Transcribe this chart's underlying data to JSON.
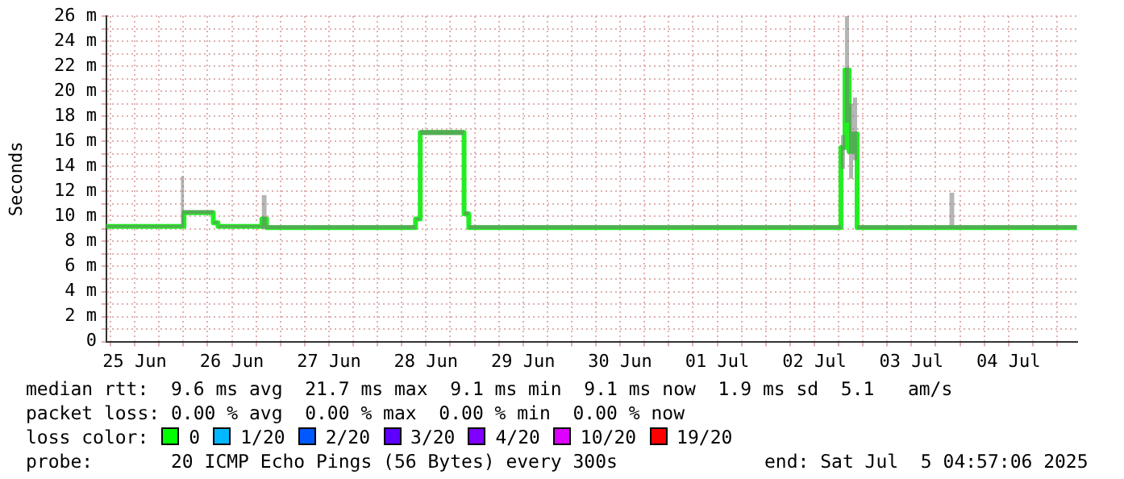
{
  "chart_data": {
    "type": "step",
    "ylabel": "Seconds",
    "series": [
      {
        "color": "#22ee22",
        "x": [
          "2025-06-25T05:00",
          "2025-06-25T23:25",
          "2025-06-26T00:10",
          "2025-06-26T07:25",
          "2025-06-26T08:35",
          "2025-06-26T19:25",
          "2025-06-26T20:35",
          "2025-06-28T09:25",
          "2025-06-28T10:35",
          "2025-06-28T21:25",
          "2025-06-28T22:35",
          "2025-07-02T18:35",
          "2025-07-02T19:35",
          "2025-07-02T20:35",
          "2025-07-02T21:35",
          "2025-07-02T22:35",
          "2025-07-03T21:25",
          "2025-07-03T22:35",
          "2025-07-05T04:55"
        ],
        "values": [
          9.2,
          9.2,
          10.3,
          9.5,
          9.2,
          9.8,
          9.1,
          9.8,
          16.7,
          10.2,
          9.1,
          15.5,
          21.7,
          15.2,
          16.6,
          9.1,
          9.1,
          9.1,
          9.1
        ],
        "lower": [
          9.1,
          9.1,
          10.2,
          9.4,
          9.1,
          9.0,
          9.0,
          9.7,
          16.5,
          10.1,
          9.0,
          13.8,
          17.5,
          13.0,
          14.5,
          9.0,
          9.0,
          9.0,
          9.0
        ],
        "upper": [
          9.3,
          13.2,
          10.5,
          9.6,
          9.3,
          11.7,
          9.3,
          9.9,
          16.9,
          10.4,
          9.3,
          16.5,
          26.0,
          19.0,
          19.5,
          9.3,
          11.9,
          9.3,
          9.3
        ]
      }
    ],
    "xlim": [
      "2025-06-25T05:00",
      "2025-07-05T05:00"
    ],
    "xticks": [
      {
        "value": "2025-06-25T06:00",
        "label": null
      },
      {
        "value": "2025-06-25T12:00",
        "label": "25 Jun"
      },
      {
        "value": "2025-06-25T18:00",
        "label": null
      },
      {
        "value": "2025-06-26T00:00",
        "label": null
      },
      {
        "value": "2025-06-26T06:00",
        "label": null
      },
      {
        "value": "2025-06-26T12:00",
        "label": "26 Jun"
      },
      {
        "value": "2025-06-26T18:00",
        "label": null
      },
      {
        "value": "2025-06-27T00:00",
        "label": null
      },
      {
        "value": "2025-06-27T06:00",
        "label": null
      },
      {
        "value": "2025-06-27T12:00",
        "label": "27 Jun"
      },
      {
        "value": "2025-06-27T18:00",
        "label": null
      },
      {
        "value": "2025-06-28T00:00",
        "label": null
      },
      {
        "value": "2025-06-28T06:00",
        "label": null
      },
      {
        "value": "2025-06-28T12:00",
        "label": "28 Jun"
      },
      {
        "value": "2025-06-28T18:00",
        "label": null
      },
      {
        "value": "2025-06-29T00:00",
        "label": null
      },
      {
        "value": "2025-06-29T06:00",
        "label": null
      },
      {
        "value": "2025-06-29T12:00",
        "label": "29 Jun"
      },
      {
        "value": "2025-06-29T18:00",
        "label": null
      },
      {
        "value": "2025-06-30T00:00",
        "label": null
      },
      {
        "value": "2025-06-30T06:00",
        "label": null
      },
      {
        "value": "2025-06-30T12:00",
        "label": "30 Jun"
      },
      {
        "value": "2025-06-30T18:00",
        "label": null
      },
      {
        "value": "2025-07-01T00:00",
        "label": null
      },
      {
        "value": "2025-07-01T06:00",
        "label": null
      },
      {
        "value": "2025-07-01T12:00",
        "label": "01 Jul"
      },
      {
        "value": "2025-07-01T18:00",
        "label": null
      },
      {
        "value": "2025-07-02T00:00",
        "label": null
      },
      {
        "value": "2025-07-02T06:00",
        "label": null
      },
      {
        "value": "2025-07-02T12:00",
        "label": "02 Jul"
      },
      {
        "value": "2025-07-02T18:00",
        "label": null
      },
      {
        "value": "2025-07-03T00:00",
        "label": null
      },
      {
        "value": "2025-07-03T06:00",
        "label": null
      },
      {
        "value": "2025-07-03T12:00",
        "label": "03 Jul"
      },
      {
        "value": "2025-07-03T18:00",
        "label": null
      },
      {
        "value": "2025-07-04T00:00",
        "label": null
      },
      {
        "value": "2025-07-04T06:00",
        "label": null
      },
      {
        "value": "2025-07-04T12:00",
        "label": "04 Jul"
      },
      {
        "value": "2025-07-04T18:00",
        "label": null
      },
      {
        "value": "2025-07-05T00:00",
        "label": null
      }
    ],
    "ylim": [
      0,
      26
    ],
    "yticks": [
      0,
      {
        "value": 1,
        "label": null
      },
      {
        "value": 2,
        "label": "2 m"
      },
      {
        "value": 3,
        "label": null
      },
      {
        "value": 4,
        "label": "4 m"
      },
      {
        "value": 5,
        "label": null
      },
      {
        "value": 6,
        "label": "6 m"
      },
      {
        "value": 7,
        "label": null
      },
      {
        "value": 8,
        "label": "8 m"
      },
      {
        "value": 9,
        "label": null
      },
      {
        "value": 10,
        "label": "10 m"
      },
      {
        "value": 11,
        "label": null
      },
      {
        "value": 12,
        "label": "12 m"
      },
      {
        "value": 13,
        "label": null
      },
      {
        "value": 14,
        "label": "14 m"
      },
      {
        "value": 15,
        "label": null
      },
      {
        "value": 16,
        "label": "16 m"
      },
      {
        "value": 17,
        "label": null
      },
      {
        "value": 18,
        "label": "18 m"
      },
      {
        "value": 19,
        "label": null
      },
      {
        "value": 20,
        "label": "20 m"
      },
      {
        "value": 21,
        "label": null
      },
      {
        "value": 22,
        "label": "22 m"
      },
      {
        "value": 23,
        "label": null
      },
      {
        "value": 24,
        "label": "24 m"
      },
      {
        "value": 25,
        "label": null
      },
      {
        "value": 26,
        "label": "26 m"
      }
    ],
    "grid": true,
    "annotations": [
      "median rtt:  9.6 ms avg  21.7 ms max  9.1 ms min  9.1 ms now  1.9 ms sd  5.1   am/s",
      "packet loss: 0.00 % avg  0.00 % max  0.00 % min  0.00 % now",
      "loss color:",
      "0",
      "1/20",
      "2/20",
      "3/20",
      "4/20",
      "10/20",
      "19/20",
      "probe:       20 ICMP Echo Pings (56 Bytes) every 300s",
      "end: Sat Jul  5 04:57:06 2025"
    ]
  }
}
